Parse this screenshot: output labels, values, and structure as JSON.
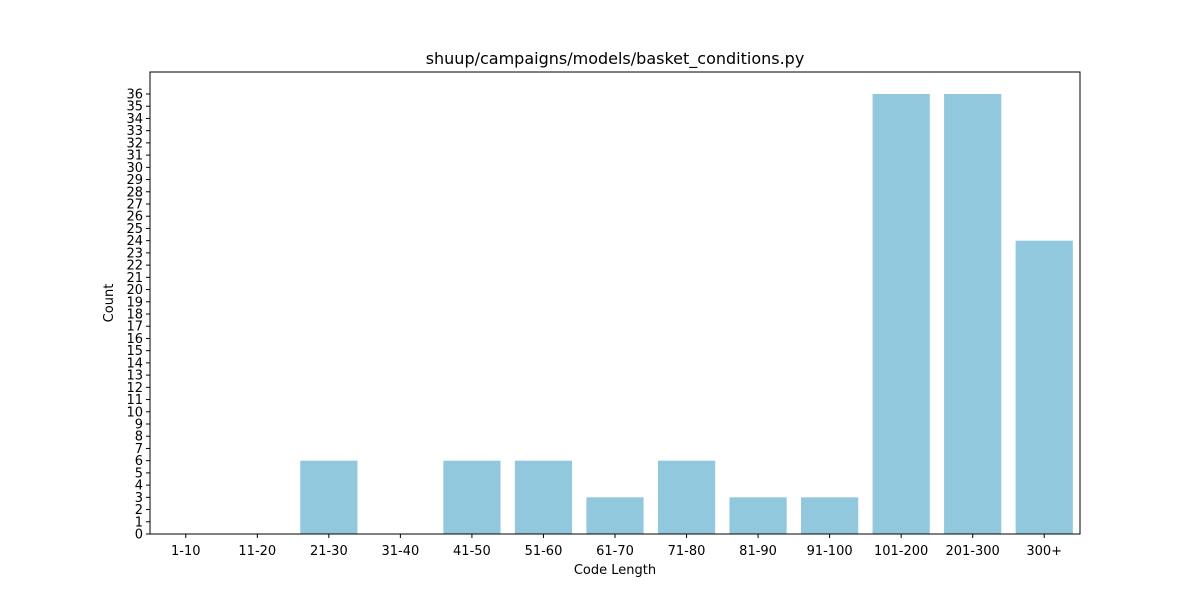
{
  "chart_data": {
    "type": "bar",
    "title": "shuup/campaigns/models/basket_conditions.py",
    "xlabel": "Code Length",
    "ylabel": "Count",
    "categories": [
      "1-10",
      "11-20",
      "21-30",
      "31-40",
      "41-50",
      "51-60",
      "61-70",
      "71-80",
      "81-90",
      "91-100",
      "101-200",
      "201-300",
      "300+"
    ],
    "values": [
      0,
      0,
      6,
      0,
      6,
      6,
      3,
      6,
      3,
      3,
      36,
      36,
      24
    ],
    "ylim": [
      0,
      37.8
    ],
    "yticks": [
      0,
      1,
      2,
      3,
      4,
      5,
      6,
      7,
      8,
      9,
      10,
      11,
      12,
      13,
      14,
      15,
      16,
      17,
      18,
      19,
      20,
      21,
      22,
      23,
      24,
      25,
      26,
      27,
      28,
      29,
      30,
      31,
      32,
      33,
      34,
      35,
      36
    ],
    "grid": false,
    "legend": "none",
    "bar_color": "#92c8de"
  }
}
